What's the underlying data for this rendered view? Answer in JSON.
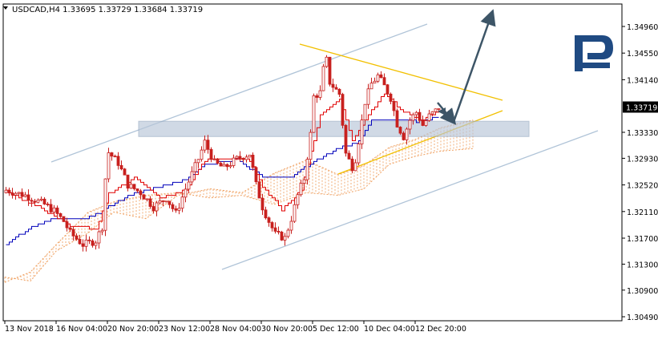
{
  "chart_data": {
    "type": "candlestick",
    "symbol_line": {
      "symbol": "USDCAD",
      "timeframe": "H4",
      "open": "1.33695",
      "high": "1.33729",
      "low": "1.33684",
      "close": "1.33719",
      "full_text": "USDCAD,H4  1.33695 1.33729 1.33684 1.33719"
    },
    "last_price": 1.33719,
    "last_price_label": "1.33719",
    "y_ticks": [
      "1.34960",
      "1.34550",
      "1.34140",
      "1.33330",
      "1.32930",
      "1.32520",
      "1.32110",
      "1.31700",
      "1.31300",
      "1.30900",
      "1.30490"
    ],
    "y_tick_values": [
      1.3496,
      1.3455,
      1.3414,
      1.3333,
      1.3293,
      1.3252,
      1.3211,
      1.317,
      1.313,
      1.309,
      1.3049
    ],
    "x_ticks": [
      "13 Nov 2018",
      "16 Nov 04:00",
      "20 Nov 20:00",
      "23 Nov 12:00",
      "28 Nov 04:00",
      "30 Nov 20:00",
      "5 Dec 12:00",
      "10 Dec 04:00",
      "12 Dec 20:00"
    ],
    "x_tick_bar_index": [
      0,
      16,
      32,
      48,
      64,
      80,
      96,
      112,
      128
    ],
    "bar_count": 136,
    "y_range": [
      1.3049,
      1.3496
    ],
    "close_path_anchors": [
      [
        0,
        1.3244
      ],
      [
        6,
        1.3236
      ],
      [
        12,
        1.3222
      ],
      [
        15,
        1.3212
      ],
      [
        18,
        1.3196
      ],
      [
        20,
        1.3178
      ],
      [
        24,
        1.316
      ],
      [
        28,
        1.3166
      ],
      [
        30,
        1.3188
      ],
      [
        31,
        1.3262
      ],
      [
        32,
        1.3302
      ],
      [
        35,
        1.3286
      ],
      [
        38,
        1.3252
      ],
      [
        42,
        1.324
      ],
      [
        46,
        1.3218
      ],
      [
        50,
        1.3232
      ],
      [
        53,
        1.3208
      ],
      [
        56,
        1.3246
      ],
      [
        60,
        1.3292
      ],
      [
        62,
        1.3318
      ],
      [
        65,
        1.3286
      ],
      [
        68,
        1.3278
      ],
      [
        72,
        1.3292
      ],
      [
        76,
        1.33
      ],
      [
        78,
        1.3252
      ],
      [
        80,
        1.3218
      ],
      [
        82,
        1.3196
      ],
      [
        84,
        1.3176
      ],
      [
        87,
        1.317
      ],
      [
        89,
        1.32
      ],
      [
        91,
        1.3236
      ],
      [
        93,
        1.3262
      ],
      [
        95,
        1.333
      ],
      [
        96,
        1.3388
      ],
      [
        98,
        1.3394
      ],
      [
        99,
        1.343
      ],
      [
        100,
        1.3444
      ],
      [
        101,
        1.341
      ],
      [
        104,
        1.3392
      ],
      [
        106,
        1.33
      ],
      [
        108,
        1.328
      ],
      [
        109,
        1.3292
      ],
      [
        110,
        1.332
      ],
      [
        111,
        1.335
      ],
      [
        112,
        1.338
      ],
      [
        114,
        1.3408
      ],
      [
        116,
        1.342
      ],
      [
        118,
        1.3404
      ],
      [
        120,
        1.3386
      ],
      [
        122,
        1.3346
      ],
      [
        124,
        1.3326
      ],
      [
        126,
        1.3352
      ],
      [
        128,
        1.3364
      ],
      [
        130,
        1.3344
      ],
      [
        132,
        1.3358
      ],
      [
        134,
        1.3366
      ],
      [
        135,
        1.3372
      ]
    ],
    "tenkan_anchors": [
      [
        0,
        1.3242
      ],
      [
        10,
        1.3218
      ],
      [
        20,
        1.319
      ],
      [
        28,
        1.3184
      ],
      [
        32,
        1.3238
      ],
      [
        40,
        1.3262
      ],
      [
        48,
        1.3232
      ],
      [
        56,
        1.3244
      ],
      [
        62,
        1.329
      ],
      [
        70,
        1.3294
      ],
      [
        76,
        1.329
      ],
      [
        80,
        1.325
      ],
      [
        86,
        1.3214
      ],
      [
        92,
        1.3244
      ],
      [
        98,
        1.336
      ],
      [
        104,
        1.3384
      ],
      [
        108,
        1.332
      ],
      [
        112,
        1.3352
      ],
      [
        118,
        1.3394
      ],
      [
        124,
        1.3364
      ],
      [
        130,
        1.3352
      ],
      [
        135,
        1.3368
      ]
    ],
    "kijun_anchors": [
      [
        0,
        1.316
      ],
      [
        8,
        1.3188
      ],
      [
        14,
        1.3198
      ],
      [
        24,
        1.3198
      ],
      [
        30,
        1.3212
      ],
      [
        38,
        1.3236
      ],
      [
        48,
        1.325
      ],
      [
        56,
        1.326
      ],
      [
        62,
        1.3282
      ],
      [
        72,
        1.3292
      ],
      [
        80,
        1.3264
      ],
      [
        88,
        1.3262
      ],
      [
        96,
        1.3288
      ],
      [
        104,
        1.331
      ],
      [
        110,
        1.3318
      ],
      [
        114,
        1.3352
      ],
      [
        122,
        1.3352
      ],
      [
        128,
        1.335
      ],
      [
        135,
        1.3356
      ]
    ],
    "cloud_span_a_anchors": [
      [
        0,
        1.311
      ],
      [
        8,
        1.3104
      ],
      [
        16,
        1.315
      ],
      [
        26,
        1.3178
      ],
      [
        34,
        1.321
      ],
      [
        44,
        1.32
      ],
      [
        54,
        1.3236
      ],
      [
        64,
        1.3246
      ],
      [
        74,
        1.324
      ],
      [
        84,
        1.327
      ],
      [
        94,
        1.329
      ],
      [
        104,
        1.3268
      ],
      [
        112,
        1.3282
      ],
      [
        120,
        1.331
      ],
      [
        128,
        1.3322
      ],
      [
        136,
        1.334
      ],
      [
        146,
        1.3352
      ]
    ],
    "cloud_span_b_anchors": [
      [
        0,
        1.3102
      ],
      [
        8,
        1.3118
      ],
      [
        16,
        1.316
      ],
      [
        26,
        1.321
      ],
      [
        34,
        1.3226
      ],
      [
        44,
        1.3236
      ],
      [
        54,
        1.324
      ],
      [
        64,
        1.3232
      ],
      [
        74,
        1.3236
      ],
      [
        84,
        1.3222
      ],
      [
        94,
        1.324
      ],
      [
        104,
        1.3236
      ],
      [
        112,
        1.3246
      ],
      [
        120,
        1.3284
      ],
      [
        128,
        1.3296
      ],
      [
        136,
        1.3304
      ],
      [
        146,
        1.3308
      ]
    ],
    "ascending_channel": {
      "upper": [
        [
          64,
          1.3293
        ],
        [
          538,
          1.3478
        ]
      ],
      "lower": [
        [
          277,
          1.3118
        ],
        [
          746,
          1.333
        ]
      ],
      "unit": "pixel-free: x is bar-space, see script"
    },
    "triangle": {
      "upper": [
        [
          96,
          1.3472
        ],
        [
          152,
          1.34
        ]
      ],
      "lower": [
        [
          104,
          1.3268
        ],
        [
          153,
          1.3395
        ]
      ]
    },
    "support_zone": {
      "top": 1.335,
      "bottom": 1.3328,
      "from_bar": 54,
      "to_bar": 192
    },
    "forecast_arrows": [
      {
        "from": [
          134,
          1.3362
        ],
        "to": [
          138,
          1.3345
        ]
      },
      {
        "from": [
          138,
          1.3345
        ],
        "to": [
          147,
          1.349
        ]
      }
    ],
    "colors": {
      "background": "#ffffff",
      "candle_body": "#c8201e",
      "tenkan": "#e00000",
      "kijun": "#0000bb",
      "cloud": "#f0a060",
      "trend_blue": "#b0c4d8",
      "trend_yellow": "#f2c000",
      "zone_fill": "#b8c6d8",
      "arrow": "#3d5567",
      "axis": "#000000",
      "price_box": "#000000",
      "price_box_text": "#ffffff",
      "logo": "#1f4a82"
    },
    "grid": false,
    "legend": "none"
  },
  "logo": {
    "icon": "broker-logo-icon"
  }
}
